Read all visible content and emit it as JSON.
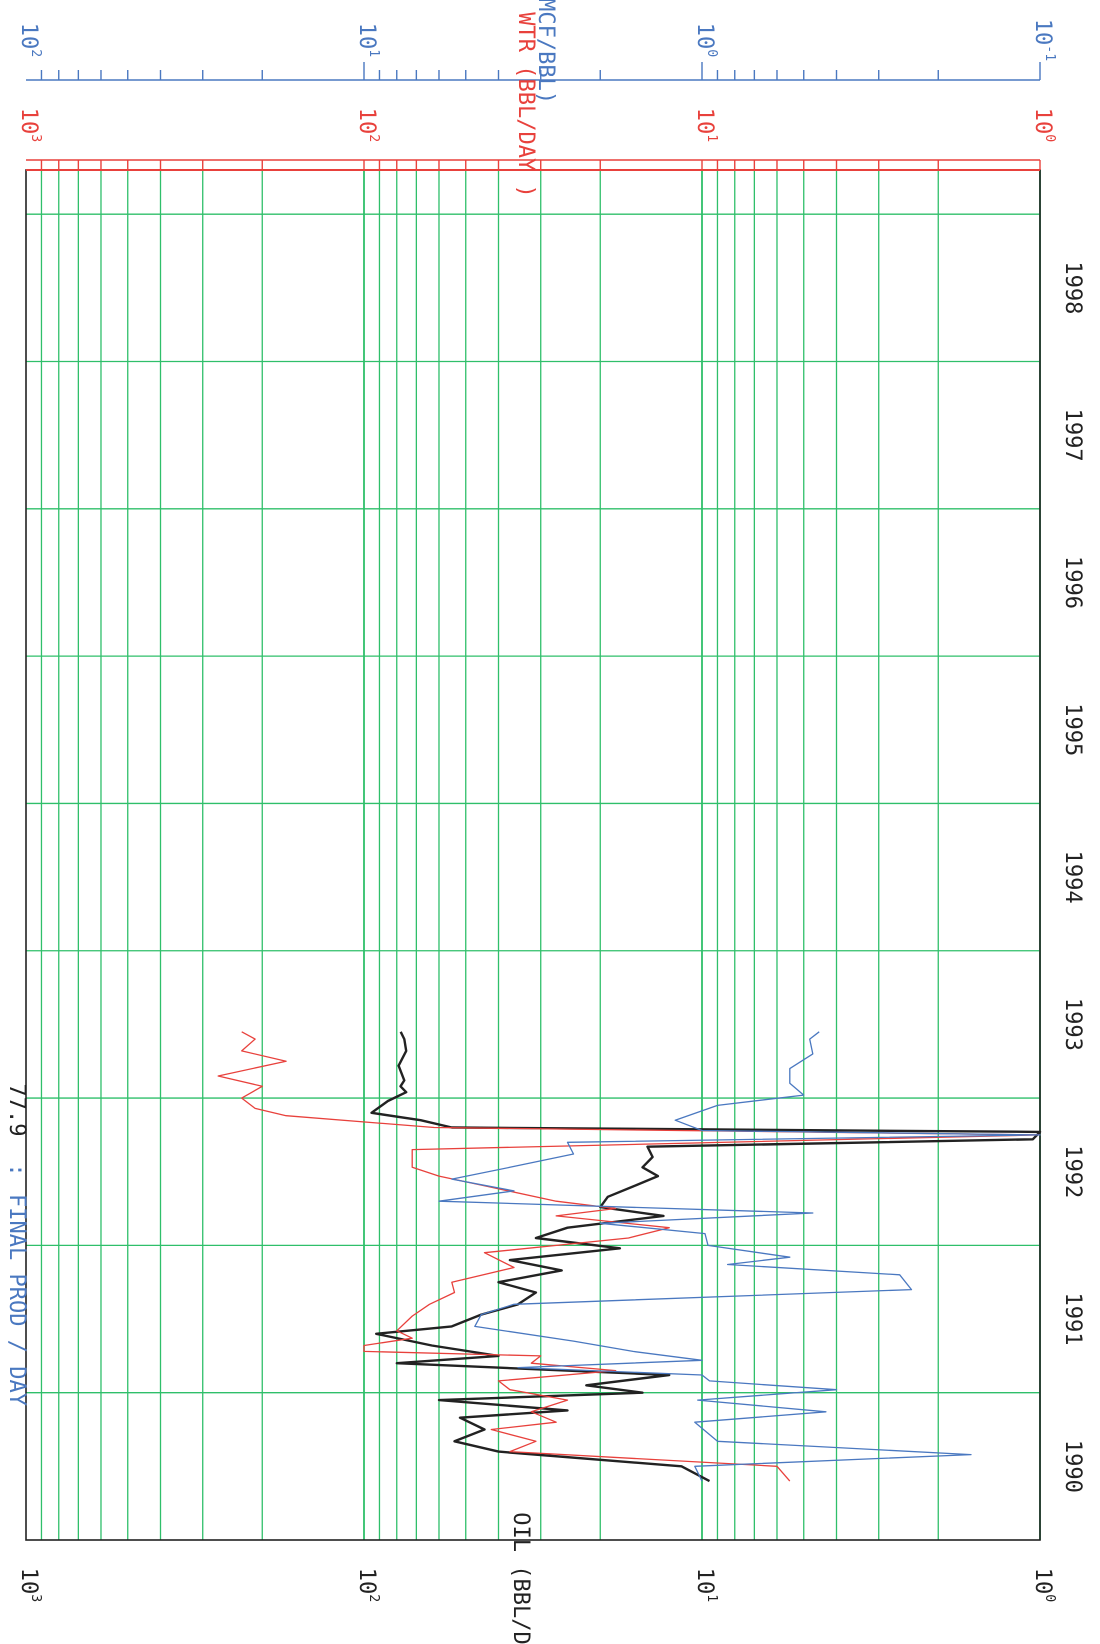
{
  "chart_data": {
    "type": "line",
    "orientation": "rotated-90",
    "title": "",
    "annotation": {
      "label": "FINAL PROD / DAY",
      "separator": ":",
      "value": "77.9"
    },
    "time_axis": {
      "year_labels": [
        "1990",
        "1991",
        "1992",
        "1993",
        "1994",
        "1995",
        "1996",
        "1997",
        "1998"
      ],
      "range": [
        1989.5,
        1998.8
      ]
    },
    "axes": {
      "oil": {
        "label": "OIL   (BBL/DAY )",
        "scale": "log",
        "range": [
          1,
          1000
        ],
        "tick_labels": [
          {
            "base": "10",
            "exp": "3"
          },
          {
            "base": "10",
            "exp": "2"
          },
          {
            "base": "10",
            "exp": "1"
          },
          {
            "base": "10",
            "exp": "0"
          }
        ],
        "color": "#222222"
      },
      "wtr": {
        "label": "WTR    (BBL/DAY )",
        "scale": "log",
        "range": [
          1,
          1000
        ],
        "tick_labels": [
          {
            "base": "10",
            "exp": "3"
          },
          {
            "base": "10",
            "exp": "2"
          },
          {
            "base": "10",
            "exp": "1"
          },
          {
            "base": "10",
            "exp": "0"
          }
        ],
        "color": "#e8413c"
      },
      "gor": {
        "label": "GOR (MCF/BBL)",
        "scale": "log",
        "range": [
          0.1,
          100
        ],
        "tick_labels": [
          {
            "base": "10",
            "exp": "2"
          },
          {
            "base": "10",
            "exp": "1"
          },
          {
            "base": "10",
            "exp": "0"
          },
          {
            "base": "10",
            "exp": "-1"
          }
        ],
        "color": "#4a78c0"
      }
    },
    "grid": true,
    "colors": {
      "grid": "#2fbf6a",
      "oil": "#222222",
      "wtr": "#e8413c",
      "gor": "#4a78c0",
      "frame": "#222222"
    },
    "series": [
      {
        "axis": "oil",
        "x": [
          1989.9,
          1990.0,
          1990.1,
          1990.17,
          1990.25,
          1990.33,
          1990.38,
          1990.45,
          1990.5,
          1990.55,
          1990.62,
          1990.7,
          1990.75,
          1990.82,
          1990.9,
          1990.95,
          1991.03,
          1991.1,
          1991.18,
          1991.25,
          1991.33,
          1991.4,
          1991.48,
          1991.55,
          1991.62,
          1991.7,
          1991.76,
          1991.83,
          1991.9,
          1991.97,
          1992.03,
          1992.1,
          1992.17,
          1992.22,
          1992.27,
          1992.3,
          1992.35,
          1992.4,
          1992.48,
          1992.54,
          1992.58,
          1992.62,
          1992.72,
          1992.82,
          1992.9,
          1992.95
        ],
        "y": [
          9.5,
          11.5,
          40,
          54,
          44,
          52,
          25,
          60,
          15,
          22,
          12.5,
          80,
          40,
          63,
          92,
          55,
          45,
          35,
          31,
          40,
          26,
          37,
          17.5,
          31,
          25,
          13,
          20,
          19,
          16,
          13.5,
          15,
          14,
          14.5,
          1.05,
          1.0,
          55,
          68,
          95,
          85,
          75,
          78,
          76,
          79,
          75,
          76,
          77.9
        ]
      },
      {
        "axis": "wtr",
        "x": [
          1989.9,
          1990.0,
          1990.1,
          1990.17,
          1990.25,
          1990.3,
          1990.37,
          1990.45,
          1990.52,
          1990.58,
          1990.65,
          1990.7,
          1990.75,
          1990.78,
          1990.82,
          1990.87,
          1990.92,
          1991.02,
          1991.1,
          1991.18,
          1991.25,
          1991.35,
          1991.45,
          1991.55,
          1991.62,
          1991.7,
          1991.75,
          1991.8,
          1991.9,
          1991.97,
          1992.03,
          1992.15,
          1992.25,
          1992.3,
          1992.38,
          1992.43,
          1992.5,
          1992.58,
          1992.65,
          1992.75,
          1992.82,
          1992.9,
          1992.95
        ],
        "y": [
          5.5,
          6,
          37,
          31,
          42,
          27,
          32,
          25,
          37,
          40,
          18,
          32,
          30,
          100,
          100,
          72,
          80,
          72,
          64,
          54,
          55,
          36,
          44,
          16.5,
          12.5,
          27,
          18,
          27,
          43,
          60,
          72,
          72,
          1.0,
          62,
          170,
          210,
          230,
          200,
          270,
          170,
          230,
          210,
          230
        ]
      },
      {
        "axis": "gor",
        "x": [
          1989.9,
          1990.0,
          1990.08,
          1990.17,
          1990.3,
          1990.37,
          1990.45,
          1990.52,
          1990.58,
          1990.62,
          1990.67,
          1990.72,
          1990.78,
          1990.85,
          1990.95,
          1991.03,
          1991.1,
          1991.2,
          1991.3,
          1991.37,
          1991.42,
          1991.5,
          1991.58,
          1991.65,
          1991.72,
          1991.8,
          1991.87,
          1991.95,
          1992.03,
          1992.12,
          1992.2,
          1992.25,
          1992.28,
          1992.35,
          1992.45,
          1992.52,
          1992.6,
          1992.7,
          1992.8,
          1992.9,
          1992.95
        ],
        "y": [
          1.0,
          1.05,
          0.16,
          0.9,
          1.05,
          0.43,
          1.03,
          0.4,
          0.95,
          1.0,
          3.5,
          1.0,
          1.6,
          2.4,
          4.7,
          4.5,
          3.6,
          0.24,
          0.26,
          0.84,
          0.55,
          0.96,
          0.98,
          2.0,
          0.47,
          6.0,
          3.6,
          5.5,
          3.7,
          2.4,
          2.5,
          0.1,
          1.0,
          1.2,
          0.9,
          0.5,
          0.55,
          0.55,
          0.47,
          0.48,
          0.45
        ]
      }
    ]
  }
}
